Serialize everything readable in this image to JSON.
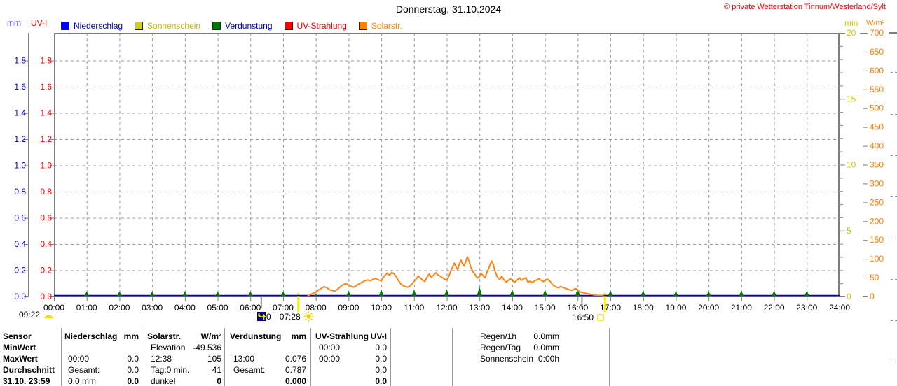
{
  "title": "Donnerstag, 31.10.2024",
  "copyright": "© private Wetterstation Tinnum/Westerland/Sylt",
  "units": {
    "left_outer": "mm",
    "left_inner": "UV-I",
    "right_inner": "min",
    "right_outer": "W/m²"
  },
  "colors": {
    "blue_axis": "#0000cc",
    "red_axis": "#ee0000",
    "yellow_axis": "#c8c800",
    "orange_axis": "#ff8000",
    "grid": "#999999",
    "border": "#7d7d7d",
    "tick": "#808080",
    "rain_line": "#0000b4",
    "solar_line": "#ff8519",
    "evap_green": "#007700",
    "event_yellow": "#f0f000",
    "event_gray": "#8c8c8c",
    "moon_bg": "#000080",
    "sun_yellow": "#f0d800"
  },
  "legend": [
    {
      "label": "Niederschlag",
      "swatch": "#0000ff",
      "text": "#0000cc"
    },
    {
      "label": "Sonnenschein",
      "swatch": "#cccc22",
      "text": "#bcbc00"
    },
    {
      "label": "Verdunstung",
      "swatch": "#007700",
      "text": "#0000cc"
    },
    {
      "label": "UV-Strahlung",
      "swatch": "#ff0000",
      "text": "#ee0000"
    },
    {
      "label": "Solarstr.",
      "swatch": "#ff8000",
      "text": "#ff8000"
    }
  ],
  "markers": {
    "moon_left_time": "09:22",
    "moon_phase_value": "0",
    "sunrise_time": "07:28",
    "sunset_time": "16:50"
  },
  "chart_data": {
    "type": "line",
    "title": "Donnerstag, 31.10.2024",
    "x_range": [
      0,
      24
    ],
    "x_tick_labels": [
      "00:00",
      "01:00",
      "02:00",
      "03:00",
      "04:00",
      "05:00",
      "06:00",
      "07:00",
      "08:00",
      "09:00",
      "10:00",
      "11:00",
      "12:00",
      "13:00",
      "14:00",
      "15:00",
      "16:00",
      "17:00",
      "18:00",
      "19:00",
      "20:00",
      "21:00",
      "22:00",
      "23:00",
      "24:00"
    ],
    "grid": true,
    "axes": {
      "mm": {
        "label": "mm",
        "min": 0,
        "max": 2.011,
        "tick_step": 0.2,
        "tick_labels": [
          "0.0",
          "0.2",
          "0.4",
          "0.6",
          "0.8",
          "1.0",
          "1.2",
          "1.4",
          "1.6",
          "1.8"
        ]
      },
      "uvi": {
        "label": "UV-I",
        "min": 0,
        "max": 2.011,
        "tick_step": 0.2,
        "tick_labels": [
          "0.0",
          "0.2",
          "0.4",
          "0.6",
          "0.8",
          "1.0",
          "1.2",
          "1.4",
          "1.6",
          "1.8"
        ]
      },
      "min": {
        "label": "min",
        "min": 0,
        "max": 20,
        "tick_step": 5,
        "tick_labels": [
          "0",
          "5",
          "10",
          "15",
          "20"
        ],
        "minor_step": 1
      },
      "wm2": {
        "label": "W/m²",
        "min": 0,
        "max": 700,
        "tick_step": 50,
        "tick_labels": [
          "0",
          "50",
          "100",
          "150",
          "200",
          "250",
          "300",
          "350",
          "400",
          "450",
          "500",
          "550",
          "600",
          "650",
          "700"
        ]
      }
    },
    "series": [
      {
        "name": "Niederschlag",
        "axis": "mm",
        "type": "line",
        "constant": 0.0
      },
      {
        "name": "Sonnenschein",
        "axis": "min",
        "type": "line",
        "points": []
      },
      {
        "name": "Verdunstung",
        "axis": "mm",
        "type": "triangle-markers",
        "points": [
          [
            1,
            0.038
          ],
          [
            2,
            0.038
          ],
          [
            3,
            0.038
          ],
          [
            4,
            0.04
          ],
          [
            5,
            0.038
          ],
          [
            6,
            0.038
          ],
          [
            7,
            0.038
          ],
          [
            8,
            0.02
          ],
          [
            9,
            0.042
          ],
          [
            10,
            0.052
          ],
          [
            11,
            0.052
          ],
          [
            12,
            0.055
          ],
          [
            13,
            0.076
          ],
          [
            14,
            0.052
          ],
          [
            15,
            0.05
          ],
          [
            16,
            0.06
          ],
          [
            17,
            0.045
          ],
          [
            18,
            0.042
          ],
          [
            19,
            0.04
          ],
          [
            20,
            0.04
          ],
          [
            21,
            0.044
          ],
          [
            22,
            0.044
          ],
          [
            23,
            0.044
          ]
        ]
      },
      {
        "name": "UV-Strahlung",
        "axis": "uvi",
        "type": "line",
        "constant": 0.0
      },
      {
        "name": "Solarstr.",
        "axis": "wm2",
        "type": "line",
        "points": [
          [
            7.75,
            1
          ],
          [
            7.83,
            5
          ],
          [
            7.9,
            8
          ],
          [
            8.0,
            11
          ],
          [
            8.08,
            17
          ],
          [
            8.17,
            22
          ],
          [
            8.25,
            26
          ],
          [
            8.33,
            24
          ],
          [
            8.42,
            18
          ],
          [
            8.5,
            16
          ],
          [
            8.58,
            14
          ],
          [
            8.67,
            20
          ],
          [
            8.75,
            26
          ],
          [
            8.83,
            31
          ],
          [
            8.92,
            34
          ],
          [
            9.0,
            31
          ],
          [
            9.08,
            27
          ],
          [
            9.17,
            25
          ],
          [
            9.25,
            30
          ],
          [
            9.33,
            34
          ],
          [
            9.42,
            38
          ],
          [
            9.5,
            42
          ],
          [
            9.58,
            44
          ],
          [
            9.67,
            42
          ],
          [
            9.75,
            46
          ],
          [
            9.83,
            48
          ],
          [
            9.92,
            44
          ],
          [
            10.0,
            42
          ],
          [
            10.05,
            50
          ],
          [
            10.12,
            57
          ],
          [
            10.18,
            62
          ],
          [
            10.25,
            56
          ],
          [
            10.32,
            64
          ],
          [
            10.4,
            59
          ],
          [
            10.47,
            50
          ],
          [
            10.53,
            42
          ],
          [
            10.6,
            33
          ],
          [
            10.68,
            28
          ],
          [
            10.75,
            26
          ],
          [
            10.83,
            25
          ],
          [
            10.92,
            32
          ],
          [
            11.0,
            40
          ],
          [
            11.07,
            47
          ],
          [
            11.13,
            54
          ],
          [
            11.2,
            49
          ],
          [
            11.27,
            43
          ],
          [
            11.33,
            40
          ],
          [
            11.4,
            52
          ],
          [
            11.47,
            60
          ],
          [
            11.53,
            51
          ],
          [
            11.6,
            57
          ],
          [
            11.67,
            63
          ],
          [
            11.73,
            57
          ],
          [
            11.8,
            54
          ],
          [
            11.87,
            50
          ],
          [
            11.93,
            46
          ],
          [
            12.0,
            44
          ],
          [
            12.07,
            55
          ],
          [
            12.13,
            70
          ],
          [
            12.18,
            78
          ],
          [
            12.23,
            89
          ],
          [
            12.28,
            80
          ],
          [
            12.33,
            71
          ],
          [
            12.38,
            85
          ],
          [
            12.43,
            97
          ],
          [
            12.48,
            88
          ],
          [
            12.53,
            81
          ],
          [
            12.58,
            93
          ],
          [
            12.63,
            105
          ],
          [
            12.68,
            94
          ],
          [
            12.73,
            79
          ],
          [
            12.8,
            66
          ],
          [
            12.87,
            58
          ],
          [
            12.93,
            49
          ],
          [
            13.0,
            53
          ],
          [
            13.05,
            62
          ],
          [
            13.1,
            56
          ],
          [
            13.17,
            50
          ],
          [
            13.23,
            65
          ],
          [
            13.3,
            79
          ],
          [
            13.37,
            94
          ],
          [
            13.42,
            86
          ],
          [
            13.48,
            66
          ],
          [
            13.55,
            51
          ],
          [
            13.62,
            45
          ],
          [
            13.68,
            54
          ],
          [
            13.75,
            44
          ],
          [
            13.82,
            38
          ],
          [
            13.88,
            43
          ],
          [
            13.95,
            47
          ],
          [
            14.02,
            41
          ],
          [
            14.08,
            38
          ],
          [
            14.15,
            44
          ],
          [
            14.22,
            50
          ],
          [
            14.28,
            43
          ],
          [
            14.35,
            47
          ],
          [
            14.42,
            50
          ],
          [
            14.48,
            38
          ],
          [
            14.55,
            41
          ],
          [
            14.62,
            37
          ],
          [
            14.68,
            42
          ],
          [
            14.75,
            44
          ],
          [
            14.82,
            48
          ],
          [
            14.88,
            43
          ],
          [
            14.95,
            40
          ],
          [
            15.02,
            44
          ],
          [
            15.08,
            46
          ],
          [
            15.15,
            41
          ],
          [
            15.22,
            33
          ],
          [
            15.28,
            28
          ],
          [
            15.35,
            25
          ],
          [
            15.42,
            23
          ],
          [
            15.48,
            27
          ],
          [
            15.55,
            24
          ],
          [
            15.62,
            22
          ],
          [
            15.68,
            20
          ],
          [
            15.75,
            18
          ],
          [
            15.82,
            16
          ],
          [
            15.88,
            19
          ],
          [
            15.95,
            21
          ],
          [
            16.02,
            15
          ],
          [
            16.08,
            12
          ],
          [
            16.15,
            11
          ],
          [
            16.22,
            9
          ],
          [
            16.3,
            8
          ],
          [
            16.4,
            6
          ],
          [
            16.5,
            4
          ],
          [
            16.6,
            3
          ],
          [
            16.72,
            2
          ],
          [
            16.83,
            0
          ]
        ]
      }
    ],
    "events": {
      "sunrise_hour": 7.467,
      "sunset_hour": 16.833,
      "gray_tick_hours": [
        6.333,
        16.13
      ],
      "sunrise_label": "07:28",
      "sunset_label": "16:50",
      "moon_left_label": "09:22",
      "moon_phase": "0"
    }
  },
  "table": {
    "row_labels": [
      "Sensor",
      "MinWert",
      "MaxWert",
      "Durchschnitt",
      "31.10. 23:59"
    ],
    "columns": [
      {
        "name": "Niederschlag",
        "unit": "mm",
        "rows": [
          [
            "",
            ""
          ],
          [
            "00:00",
            "0.0"
          ],
          [
            "Gesamt:",
            "0.0"
          ],
          [
            "0.0 mm",
            "0.0"
          ]
        ]
      },
      {
        "name": "Solarstr.",
        "unit": "W/m²",
        "rows": [
          [
            "Elevation",
            "-49.536"
          ],
          [
            "12:38",
            "105"
          ],
          [
            "Tag:0 min.",
            "41"
          ],
          [
            "dunkel",
            "0"
          ]
        ]
      },
      {
        "name": "Verdunstung",
        "unit": "mm",
        "rows": [
          [
            "",
            ""
          ],
          [
            "13:00",
            "0.076"
          ],
          [
            "Gesamt:",
            "0.787"
          ],
          [
            "",
            "0.000"
          ]
        ]
      },
      {
        "name": "UV-Strahlung",
        "unit": "UV-I",
        "rows": [
          [
            "00:00",
            "0.0"
          ],
          [
            "00:00",
            "0.0"
          ],
          [
            "",
            "0.0"
          ],
          [
            "",
            "0.0"
          ]
        ]
      }
    ],
    "extra": [
      [
        "Regen/1h",
        "0.0mm"
      ],
      [
        "Regen/Tag",
        "0.0mm"
      ],
      [
        "Sonnenschein",
        "0:00h"
      ]
    ]
  }
}
